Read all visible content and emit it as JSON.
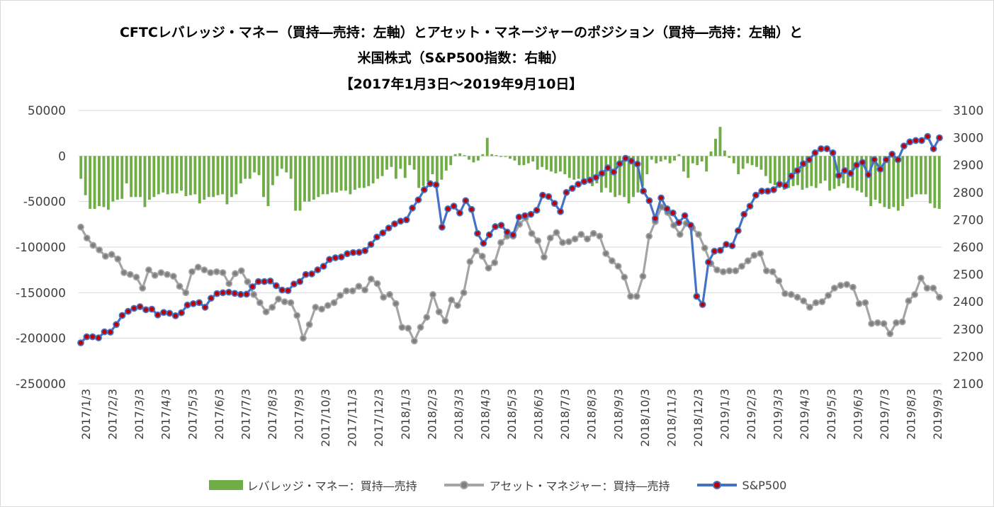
{
  "chart_data": {
    "type": "bar+line",
    "title": [
      "CFTCレバレッジ・マネー（買持―売持：左軸）とアセット・マネージャーのポジション（買持―売持：左軸）と",
      "米国株式（S&P500指数：右軸）",
      "【2017年1月3日～2019年9月10日】"
    ],
    "y_left": {
      "min": -250000,
      "max": 50000,
      "step": 50000,
      "ticks": [
        "50000",
        "0",
        "-50000",
        "-100000",
        "-150000",
        "-200000",
        "-250000"
      ]
    },
    "y_right": {
      "min": 2100,
      "max": 3100,
      "step": 100,
      "ticks": [
        "3100",
        "3000",
        "2900",
        "2800",
        "2700",
        "2600",
        "2500",
        "2400",
        "2300",
        "2200",
        "2100"
      ]
    },
    "x_labels": [
      "2017/1/3",
      "2017/2/3",
      "2017/3/3",
      "2017/4/3",
      "2017/5/3",
      "2017/6/3",
      "2017/7/3",
      "2017/8/3",
      "2017/9/3",
      "2017/10/3",
      "2017/11/3",
      "2017/12/3",
      "2018/1/3",
      "2018/2/3",
      "2018/3/3",
      "2018/4/3",
      "2018/5/3",
      "2018/6/3",
      "2018/7/3",
      "2018/8/3",
      "2018/9/3",
      "2018/10/3",
      "2018/11/3",
      "2018/12/3",
      "2019/1/3",
      "2019/2/3",
      "2019/3/3",
      "2019/4/3",
      "2019/5/3",
      "2019/6/3",
      "2019/7/3",
      "2019/8/3",
      "2019/9/3"
    ],
    "series": [
      {
        "name": "レバレッジ・マネー：買持―売持",
        "type": "bar",
        "axis": "left",
        "color": "#70ad47",
        "values": [
          -25000,
          -43000,
          -58000,
          -58000,
          -55000,
          -56000,
          -59000,
          -50000,
          -48000,
          -47000,
          -30000,
          -45000,
          -45000,
          -45000,
          -56000,
          -48000,
          -45000,
          -42000,
          -40000,
          -42000,
          -41000,
          -41000,
          -38000,
          -44000,
          -43000,
          -42000,
          -52000,
          -48000,
          -45000,
          -45000,
          -43000,
          -42000,
          -53000,
          -45000,
          -42000,
          -30000,
          -25000,
          -25000,
          -18000,
          -21000,
          -45000,
          -55000,
          -32000,
          -22000,
          -14000,
          -18000,
          -25000,
          -60000,
          -60000,
          -50000,
          -50000,
          -48000,
          -45000,
          -42000,
          -42000,
          -40000,
          -40000,
          -38000,
          -38000,
          -42000,
          -37000,
          -35000,
          -35000,
          -33000,
          -30000,
          -25000,
          -22000,
          -15000,
          -12000,
          -25000,
          -14000,
          -24000,
          -10000,
          -15000,
          -35000,
          -33000,
          -28000,
          -20000,
          -35000,
          -26000,
          -16000,
          -10000,
          2000,
          3000,
          1000,
          -4000,
          -7000,
          -5000,
          2000,
          20000,
          2000,
          1000,
          -1000,
          -1000,
          -3000,
          -5000,
          -10000,
          -10000,
          -8000,
          -6000,
          -15000,
          -12000,
          -15000,
          -17000,
          -19000,
          -17000,
          -20000,
          -24000,
          -26000,
          -25000,
          -30000,
          -28000,
          -33000,
          -30000,
          -40000,
          -35000,
          -40000,
          -45000,
          -43000,
          -45000,
          -52000,
          -45000,
          -40000,
          -33000,
          -20000,
          -4000,
          -8000,
          -6000,
          -4000,
          -8000,
          -5000,
          2000,
          -17000,
          -24000,
          -8000,
          -10000,
          -6000,
          -17000,
          5000,
          19000,
          32000,
          6000,
          -2000,
          -8000,
          -20000,
          -14000,
          -8000,
          -10000,
          -12000,
          -15000,
          -22000,
          -30000,
          -32000,
          -35000,
          -37000,
          -35000,
          -33000,
          -32000,
          -37000,
          -35000,
          -33000,
          -35000,
          -30000,
          -27000,
          -38000,
          -36000,
          -33000,
          -30000,
          -35000,
          -35000,
          -38000,
          -40000,
          -45000,
          -55000,
          -48000,
          -52000,
          -56000,
          -58000,
          -56000,
          -60000,
          -55000,
          -47000,
          -45000,
          -42000,
          -42000,
          -42000,
          -52000,
          -57000,
          -58000
        ]
      },
      {
        "name": "アセット・マネジャー：買持―売持",
        "type": "line",
        "axis": "left",
        "color": "#a5a5a5",
        "values": [
          -78000,
          -90000,
          -98000,
          -103000,
          -110000,
          -108000,
          -113000,
          -128000,
          -130000,
          -133000,
          -145000,
          -125000,
          -131000,
          -128000,
          -130000,
          -132000,
          -143000,
          -150000,
          -127000,
          -122000,
          -125000,
          -128000,
          -127000,
          -128000,
          -140000,
          -129000,
          -126000,
          -138000,
          -152000,
          -161000,
          -171000,
          -166000,
          -157000,
          -160000,
          -161000,
          -175000,
          -200000,
          -185000,
          -166000,
          -168000,
          -164000,
          -161000,
          -153000,
          -148000,
          -148000,
          -143000,
          -147000,
          -135000,
          -140000,
          -155000,
          -152000,
          -162000,
          -188000,
          -189000,
          -203000,
          -188000,
          -177000,
          -152000,
          -171000,
          -181000,
          -158000,
          -164000,
          -150000,
          -116000,
          -104000,
          -110000,
          -123000,
          -117000,
          -95000,
          -88000,
          -88000,
          -75000,
          -68000,
          -85000,
          -93000,
          -111000,
          -90000,
          -84000,
          -95000,
          -94000,
          -91000,
          -86000,
          -91000,
          -85000,
          -88000,
          -107000,
          -115000,
          -121000,
          -133000,
          -154000,
          -154000,
          -132000,
          -88000,
          -72000,
          -56000,
          -62000,
          -76000,
          -86000,
          -74000,
          -79000,
          -86000,
          -101000,
          -118000,
          -125000,
          -127000,
          -126000,
          -126000,
          -121000,
          -115000,
          -109000,
          -107000,
          -126000,
          -127000,
          -137000,
          -151000,
          -152000,
          -155000,
          -159000,
          -166000,
          -161000,
          -160000,
          -153000,
          -145000,
          -142000,
          -141000,
          -144000,
          -162000,
          -161000,
          -184000,
          -183000,
          -184000,
          -195000,
          -183000,
          -182000,
          -159000,
          -152000,
          -134000,
          -145000,
          -145000,
          -155000
        ]
      },
      {
        "name": "S&P500",
        "type": "line",
        "axis": "right",
        "color": "#4472c4",
        "marker": "#c00000",
        "values": [
          2250,
          2272,
          2272,
          2268,
          2290,
          2289,
          2317,
          2350,
          2365,
          2376,
          2382,
          2371,
          2373,
          2352,
          2361,
          2358,
          2349,
          2360,
          2388,
          2393,
          2397,
          2380,
          2413,
          2430,
          2433,
          2435,
          2431,
          2427,
          2428,
          2455,
          2474,
          2474,
          2476,
          2459,
          2443,
          2441,
          2465,
          2474,
          2500,
          2502,
          2517,
          2530,
          2555,
          2561,
          2564,
          2576,
          2580,
          2581,
          2587,
          2610,
          2637,
          2652,
          2670,
          2685,
          2695,
          2700,
          2743,
          2773,
          2810,
          2832,
          2828,
          2673,
          2740,
          2750,
          2725,
          2770,
          2738,
          2650,
          2614,
          2645,
          2675,
          2680,
          2655,
          2645,
          2710,
          2715,
          2720,
          2735,
          2790,
          2785,
          2760,
          2730,
          2800,
          2815,
          2830,
          2840,
          2845,
          2855,
          2870,
          2890,
          2875,
          2905,
          2925,
          2915,
          2904,
          2805,
          2770,
          2705,
          2780,
          2740,
          2725,
          2690,
          2715,
          2680,
          2420,
          2390,
          2545,
          2585,
          2588,
          2610,
          2605,
          2660,
          2720,
          2750,
          2790,
          2805,
          2805,
          2810,
          2830,
          2825,
          2860,
          2880,
          2905,
          2920,
          2945,
          2960,
          2960,
          2945,
          2862,
          2880,
          2870,
          2900,
          2910,
          2865,
          2920,
          2885,
          2920,
          2940,
          2920,
          2970,
          2985,
          2990,
          2990,
          3005,
          2960,
          3000
        ]
      }
    ],
    "legend": [
      "レバレッジ・マネー：買持―売持",
      "アセット・マネジャー：買持―売持",
      "S&P500"
    ]
  }
}
